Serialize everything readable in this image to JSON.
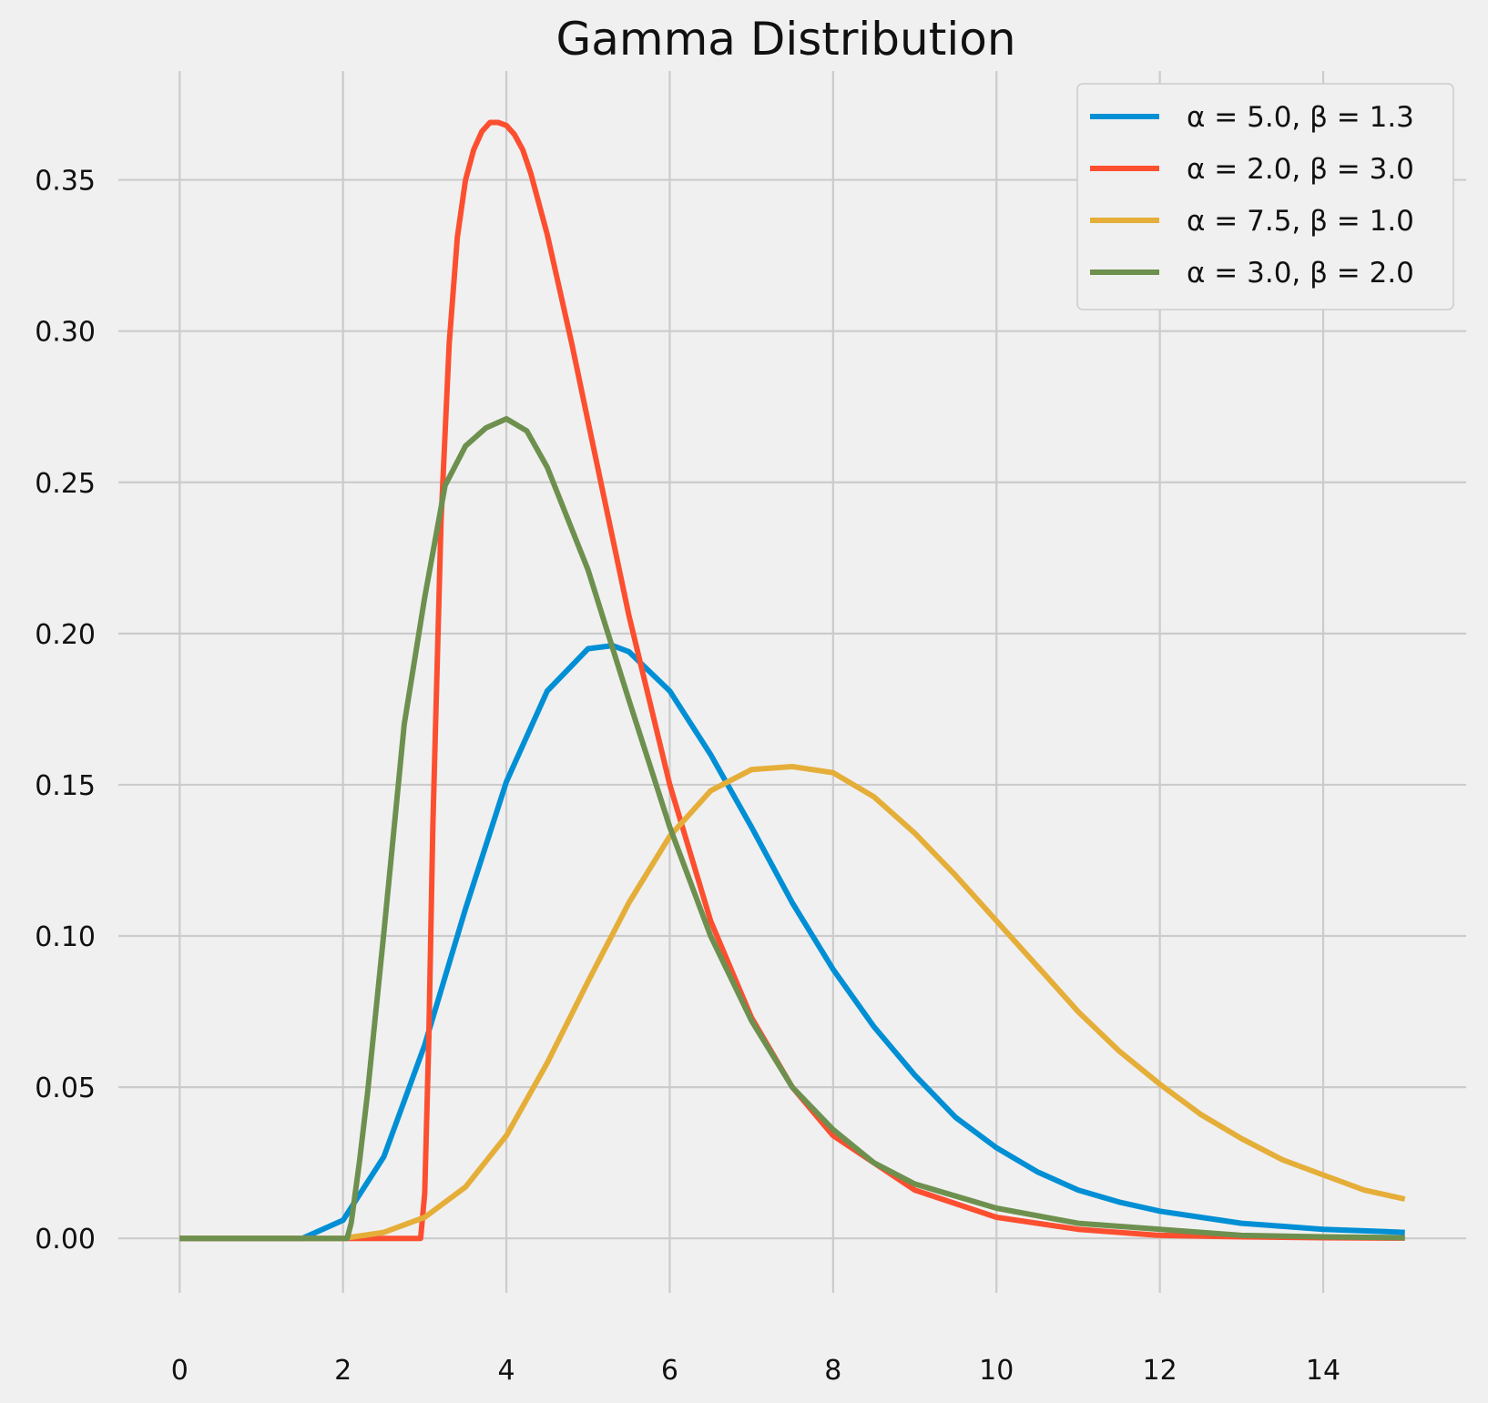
{
  "chart_data": {
    "type": "line",
    "title": "Gamma Distribution",
    "xlabel": "",
    "ylabel": "",
    "xlim": [
      -0.75,
      15.75
    ],
    "ylim": [
      -0.018,
      0.386
    ],
    "x_ticks": [
      0,
      2,
      4,
      6,
      8,
      10,
      12,
      14
    ],
    "x_tick_labels": [
      "0",
      "2",
      "4",
      "6",
      "8",
      "10",
      "12",
      "14"
    ],
    "y_ticks": [
      0.0,
      0.05,
      0.1,
      0.15,
      0.2,
      0.25,
      0.3,
      0.35
    ],
    "y_tick_labels": [
      "0.00",
      "0.05",
      "0.10",
      "0.15",
      "0.20",
      "0.25",
      "0.30",
      "0.35"
    ],
    "grid": true,
    "legend_position": "top-right",
    "series": [
      {
        "name": "α = 5.0, β = 1.3",
        "alpha": 5.0,
        "beta": 1.3,
        "color": "#008fd5",
        "x": [
          0,
          1,
          1.5,
          2,
          2.5,
          3,
          3.5,
          4,
          4.5,
          5,
          5.3,
          5.5,
          6,
          6.5,
          7,
          7.5,
          8,
          8.5,
          9,
          9.5,
          10,
          10.5,
          11,
          11.5,
          12,
          12.5,
          13,
          13.5,
          14,
          14.5,
          15
        ],
        "y": [
          0.0,
          0.0,
          0.0,
          0.006,
          0.027,
          0.064,
          0.109,
          0.151,
          0.181,
          0.195,
          0.196,
          0.194,
          0.181,
          0.16,
          0.136,
          0.111,
          0.089,
          0.07,
          0.054,
          0.04,
          0.03,
          0.022,
          0.016,
          0.012,
          0.009,
          0.007,
          0.005,
          0.004,
          0.003,
          0.0025,
          0.002
        ]
      },
      {
        "name": "α = 2.0, β = 3.0",
        "alpha": 2.0,
        "beta": 3.0,
        "color": "#fc4f30",
        "x": [
          0,
          2.9,
          2.95,
          3.0,
          3.05,
          3.1,
          3.2,
          3.3,
          3.4,
          3.5,
          3.6,
          3.7,
          3.8,
          3.9,
          4.0,
          4.1,
          4.2,
          4.3,
          4.5,
          4.8,
          5,
          5.5,
          6,
          6.5,
          7,
          7.5,
          8,
          9,
          10,
          11,
          12,
          13,
          14,
          15
        ],
        "y": [
          0.0,
          0.0,
          0.0,
          0.015,
          0.065,
          0.136,
          0.237,
          0.296,
          0.331,
          0.35,
          0.36,
          0.366,
          0.369,
          0.369,
          0.368,
          0.365,
          0.36,
          0.352,
          0.332,
          0.296,
          0.27,
          0.206,
          0.15,
          0.105,
          0.073,
          0.05,
          0.034,
          0.016,
          0.007,
          0.003,
          0.001,
          0.0005,
          0.0002,
          0.0001
        ]
      },
      {
        "name": "α = 7.5, β = 1.0",
        "alpha": 7.5,
        "beta": 1.0,
        "color": "#e5ae38",
        "x": [
          0,
          1.5,
          2,
          2.5,
          3,
          3.5,
          4,
          4.5,
          5,
          5.5,
          6,
          6.5,
          7,
          7.5,
          8,
          8.5,
          9,
          9.5,
          10,
          10.5,
          11,
          11.5,
          12,
          12.5,
          13,
          13.5,
          14,
          14.5,
          15
        ],
        "y": [
          0.0,
          0.0,
          0.0,
          0.002,
          0.007,
          0.017,
          0.034,
          0.058,
          0.085,
          0.111,
          0.133,
          0.148,
          0.155,
          0.156,
          0.154,
          0.146,
          0.134,
          0.12,
          0.105,
          0.09,
          0.075,
          0.062,
          0.051,
          0.041,
          0.033,
          0.026,
          0.021,
          0.016,
          0.013
        ]
      },
      {
        "name": "α = 3.0, β = 2.0",
        "alpha": 3.0,
        "beta": 2.0,
        "color": "#6d904f",
        "x": [
          0,
          2,
          2.05,
          2.1,
          2.2,
          2.3,
          2.5,
          2.75,
          3,
          3.25,
          3.5,
          3.75,
          4,
          4.25,
          4.5,
          5,
          5.5,
          6,
          6.5,
          7,
          7.5,
          8,
          8.5,
          9,
          10,
          11,
          12,
          13,
          14,
          15
        ],
        "y": [
          0.0,
          0.0,
          0.0,
          0.005,
          0.025,
          0.048,
          0.101,
          0.17,
          0.212,
          0.249,
          0.262,
          0.268,
          0.271,
          0.267,
          0.255,
          0.221,
          0.178,
          0.136,
          0.1,
          0.072,
          0.05,
          0.036,
          0.025,
          0.018,
          0.01,
          0.005,
          0.003,
          0.001,
          0.0005,
          0.0002
        ]
      }
    ]
  }
}
